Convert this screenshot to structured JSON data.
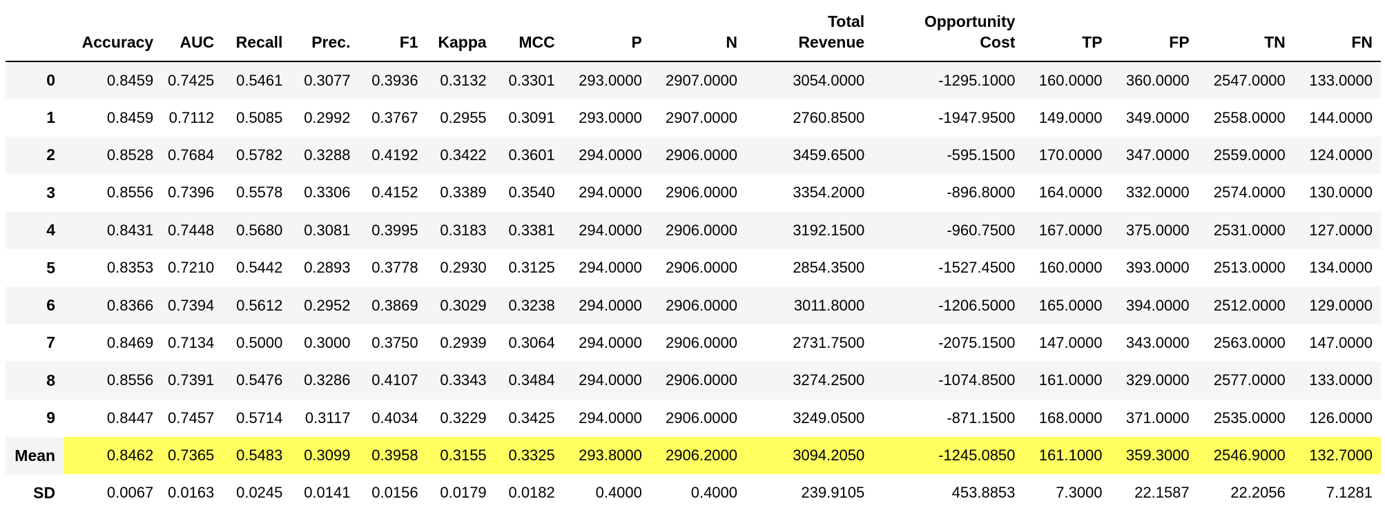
{
  "table": {
    "columns": [
      "",
      "Accuracy",
      "AUC",
      "Recall",
      "Prec.",
      "F1",
      "Kappa",
      "MCC",
      "P",
      "N",
      "Total\nRevenue",
      "Opportunity\nCost",
      "TP",
      "FP",
      "TN",
      "FN"
    ],
    "rows": [
      {
        "index": "0",
        "values": [
          "0.8459",
          "0.7425",
          "0.5461",
          "0.3077",
          "0.3936",
          "0.3132",
          "0.3301",
          "293.0000",
          "2907.0000",
          "3054.0000",
          "-1295.1000",
          "160.0000",
          "360.0000",
          "2547.0000",
          "133.0000"
        ]
      },
      {
        "index": "1",
        "values": [
          "0.8459",
          "0.7112",
          "0.5085",
          "0.2992",
          "0.3767",
          "0.2955",
          "0.3091",
          "293.0000",
          "2907.0000",
          "2760.8500",
          "-1947.9500",
          "149.0000",
          "349.0000",
          "2558.0000",
          "144.0000"
        ]
      },
      {
        "index": "2",
        "values": [
          "0.8528",
          "0.7684",
          "0.5782",
          "0.3288",
          "0.4192",
          "0.3422",
          "0.3601",
          "294.0000",
          "2906.0000",
          "3459.6500",
          "-595.1500",
          "170.0000",
          "347.0000",
          "2559.0000",
          "124.0000"
        ]
      },
      {
        "index": "3",
        "values": [
          "0.8556",
          "0.7396",
          "0.5578",
          "0.3306",
          "0.4152",
          "0.3389",
          "0.3540",
          "294.0000",
          "2906.0000",
          "3354.2000",
          "-896.8000",
          "164.0000",
          "332.0000",
          "2574.0000",
          "130.0000"
        ]
      },
      {
        "index": "4",
        "values": [
          "0.8431",
          "0.7448",
          "0.5680",
          "0.3081",
          "0.3995",
          "0.3183",
          "0.3381",
          "294.0000",
          "2906.0000",
          "3192.1500",
          "-960.7500",
          "167.0000",
          "375.0000",
          "2531.0000",
          "127.0000"
        ]
      },
      {
        "index": "5",
        "values": [
          "0.8353",
          "0.7210",
          "0.5442",
          "0.2893",
          "0.3778",
          "0.2930",
          "0.3125",
          "294.0000",
          "2906.0000",
          "2854.3500",
          "-1527.4500",
          "160.0000",
          "393.0000",
          "2513.0000",
          "134.0000"
        ]
      },
      {
        "index": "6",
        "values": [
          "0.8366",
          "0.7394",
          "0.5612",
          "0.2952",
          "0.3869",
          "0.3029",
          "0.3238",
          "294.0000",
          "2906.0000",
          "3011.8000",
          "-1206.5000",
          "165.0000",
          "394.0000",
          "2512.0000",
          "129.0000"
        ]
      },
      {
        "index": "7",
        "values": [
          "0.8469",
          "0.7134",
          "0.5000",
          "0.3000",
          "0.3750",
          "0.2939",
          "0.3064",
          "294.0000",
          "2906.0000",
          "2731.7500",
          "-2075.1500",
          "147.0000",
          "343.0000",
          "2563.0000",
          "147.0000"
        ]
      },
      {
        "index": "8",
        "values": [
          "0.8556",
          "0.7391",
          "0.5476",
          "0.3286",
          "0.4107",
          "0.3343",
          "0.3484",
          "294.0000",
          "2906.0000",
          "3274.2500",
          "-1074.8500",
          "161.0000",
          "329.0000",
          "2577.0000",
          "133.0000"
        ]
      },
      {
        "index": "9",
        "values": [
          "0.8447",
          "0.7457",
          "0.5714",
          "0.3117",
          "0.4034",
          "0.3229",
          "0.3425",
          "294.0000",
          "2906.0000",
          "3249.0500",
          "-871.1500",
          "168.0000",
          "371.0000",
          "2535.0000",
          "126.0000"
        ]
      },
      {
        "index": "Mean",
        "highlight": true,
        "values": [
          "0.8462",
          "0.7365",
          "0.5483",
          "0.3099",
          "0.3958",
          "0.3155",
          "0.3325",
          "293.8000",
          "2906.2000",
          "3094.2050",
          "-1245.0850",
          "161.1000",
          "359.3000",
          "2546.9000",
          "132.7000"
        ]
      },
      {
        "index": "SD",
        "values": [
          "0.0067",
          "0.0163",
          "0.0245",
          "0.0141",
          "0.0156",
          "0.0179",
          "0.0182",
          "0.4000",
          "0.4000",
          "239.9105",
          "453.8853",
          "7.3000",
          "22.1587",
          "22.2056",
          "7.1281"
        ]
      }
    ]
  },
  "colors": {
    "header_rule": "#000000",
    "stripe": "#f5f5f5",
    "highlight": "#ffff60"
  }
}
